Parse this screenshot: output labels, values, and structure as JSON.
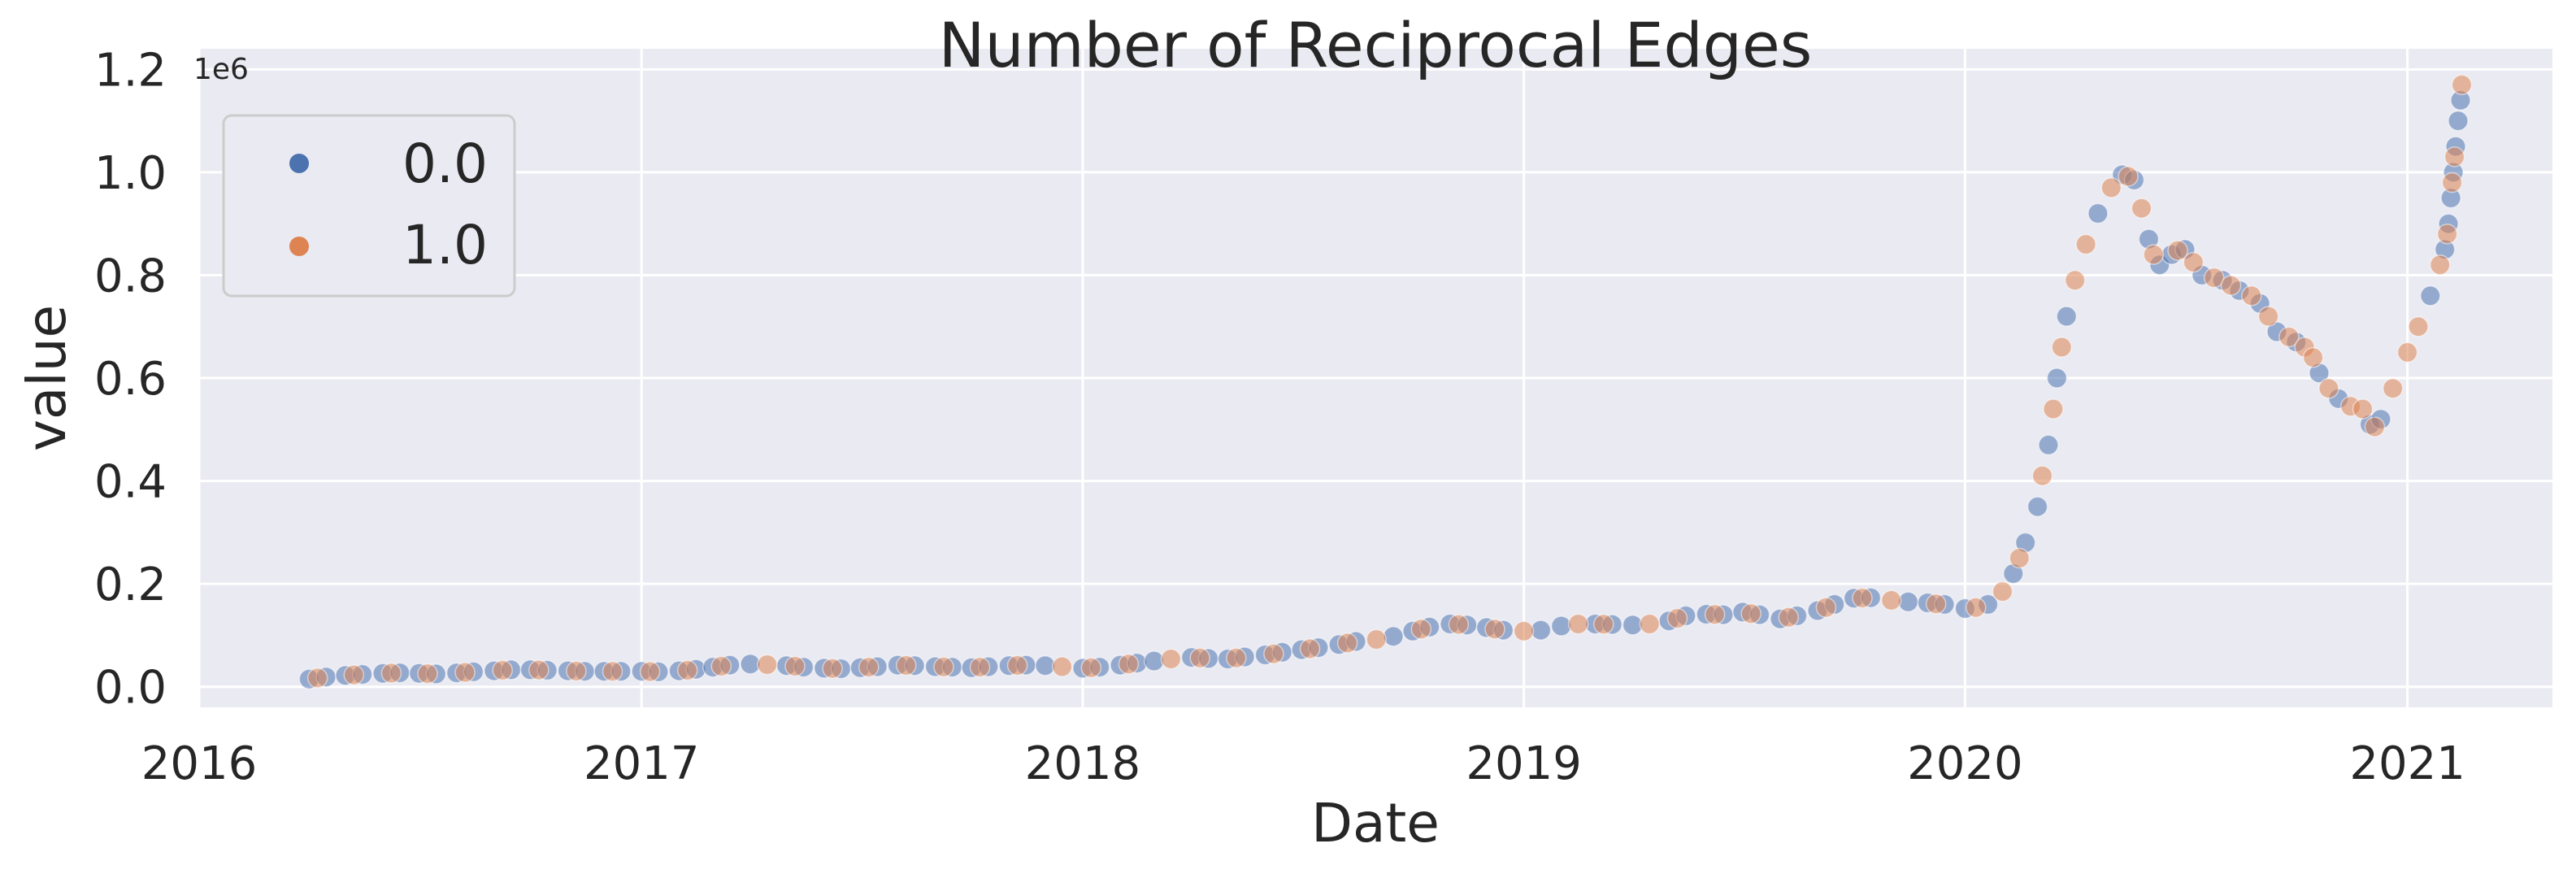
{
  "chart_data": {
    "type": "scatter",
    "title": "Number of Reciprocal Edges",
    "xlabel": "Date",
    "ylabel": "value",
    "y_offset_label": "1e6",
    "x_tick_labels": [
      "2016",
      "2017",
      "2018",
      "2019",
      "2020",
      "2021"
    ],
    "x_ticks": [
      "2016-01-01",
      "2017-01-01",
      "2018-01-01",
      "2019-01-01",
      "2020-01-01",
      "2021-01-01"
    ],
    "xlim": [
      "2016-01-01",
      "2021-05-01"
    ],
    "y_tick_labels": [
      "0.0",
      "0.2",
      "0.4",
      "0.6",
      "0.8",
      "1.0",
      "1.2"
    ],
    "y_ticks": [
      0,
      200000,
      400000,
      600000,
      800000,
      1000000,
      1200000
    ],
    "ylim": [
      -40000,
      1240000
    ],
    "grid": true,
    "legend_position": "top-left",
    "legend": [
      "0.0",
      "1.0"
    ],
    "colors": {
      "0.0": "#4c72b0",
      "1.0": "#dd8452",
      "background": "#eaeaf2",
      "grid": "#ffffff"
    },
    "series": [
      {
        "name": "0.0",
        "points": [
          [
            "2016-04-01",
            15000
          ],
          [
            "2016-04-15",
            19000
          ],
          [
            "2016-05-01",
            22000
          ],
          [
            "2016-05-15",
            24000
          ],
          [
            "2016-06-01",
            26000
          ],
          [
            "2016-06-15",
            27000
          ],
          [
            "2016-07-01",
            26000
          ],
          [
            "2016-07-15",
            25000
          ],
          [
            "2016-08-01",
            27000
          ],
          [
            "2016-08-15",
            29000
          ],
          [
            "2016-09-01",
            31000
          ],
          [
            "2016-09-15",
            33000
          ],
          [
            "2016-10-01",
            33000
          ],
          [
            "2016-10-15",
            32000
          ],
          [
            "2016-11-01",
            31000
          ],
          [
            "2016-11-15",
            30000
          ],
          [
            "2016-12-01",
            30000
          ],
          [
            "2016-12-15",
            30000
          ],
          [
            "2017-01-01",
            30000
          ],
          [
            "2017-01-15",
            29000
          ],
          [
            "2017-02-01",
            31000
          ],
          [
            "2017-02-15",
            34000
          ],
          [
            "2017-03-01",
            38000
          ],
          [
            "2017-03-15",
            42000
          ],
          [
            "2017-04-01",
            44000
          ],
          [
            "2017-05-01",
            41000
          ],
          [
            "2017-05-15",
            38000
          ],
          [
            "2017-06-01",
            36000
          ],
          [
            "2017-06-15",
            35000
          ],
          [
            "2017-07-01",
            37000
          ],
          [
            "2017-07-15",
            39000
          ],
          [
            "2017-08-01",
            42000
          ],
          [
            "2017-08-15",
            41000
          ],
          [
            "2017-09-01",
            39000
          ],
          [
            "2017-09-15",
            38000
          ],
          [
            "2017-10-01",
            37000
          ],
          [
            "2017-10-15",
            39000
          ],
          [
            "2017-11-01",
            41000
          ],
          [
            "2017-11-15",
            42000
          ],
          [
            "2017-12-01",
            41000
          ],
          [
            "2018-01-01",
            36000
          ],
          [
            "2018-01-15",
            38000
          ],
          [
            "2018-02-01",
            42000
          ],
          [
            "2018-02-15",
            46000
          ],
          [
            "2018-03-01",
            50000
          ],
          [
            "2018-04-01",
            57000
          ],
          [
            "2018-04-15",
            55000
          ],
          [
            "2018-05-01",
            54000
          ],
          [
            "2018-05-15",
            58000
          ],
          [
            "2018-06-01",
            62000
          ],
          [
            "2018-06-15",
            67000
          ],
          [
            "2018-07-01",
            72000
          ],
          [
            "2018-07-15",
            76000
          ],
          [
            "2018-08-01",
            82000
          ],
          [
            "2018-08-15",
            88000
          ],
          [
            "2018-09-15",
            98000
          ],
          [
            "2018-10-01",
            108000
          ],
          [
            "2018-10-15",
            116000
          ],
          [
            "2018-11-01",
            122000
          ],
          [
            "2018-11-15",
            120000
          ],
          [
            "2018-12-01",
            115000
          ],
          [
            "2018-12-15",
            110000
          ],
          [
            "2019-01-15",
            110000
          ],
          [
            "2019-02-01",
            118000
          ],
          [
            "2019-03-01",
            122000
          ],
          [
            "2019-03-15",
            121000
          ],
          [
            "2019-04-01",
            120000
          ],
          [
            "2019-05-01",
            128000
          ],
          [
            "2019-05-15",
            138000
          ],
          [
            "2019-06-01",
            141000
          ],
          [
            "2019-06-15",
            140000
          ],
          [
            "2019-07-01",
            145000
          ],
          [
            "2019-07-15",
            140000
          ],
          [
            "2019-08-01",
            132000
          ],
          [
            "2019-08-15",
            138000
          ],
          [
            "2019-09-01",
            148000
          ],
          [
            "2019-09-15",
            160000
          ],
          [
            "2019-10-01",
            172000
          ],
          [
            "2019-10-15",
            173000
          ],
          [
            "2019-11-15",
            165000
          ],
          [
            "2019-12-01",
            163000
          ],
          [
            "2019-12-15",
            160000
          ],
          [
            "2020-01-01",
            152000
          ],
          [
            "2020-01-20",
            160000
          ],
          [
            "2020-02-10",
            220000
          ],
          [
            "2020-02-20",
            280000
          ],
          [
            "2020-03-01",
            350000
          ],
          [
            "2020-03-10",
            470000
          ],
          [
            "2020-03-17",
            600000
          ],
          [
            "2020-03-25",
            720000
          ],
          [
            "2020-04-20",
            920000
          ],
          [
            "2020-05-10",
            995000
          ],
          [
            "2020-05-20",
            985000
          ],
          [
            "2020-06-01",
            870000
          ],
          [
            "2020-06-10",
            820000
          ],
          [
            "2020-06-20",
            840000
          ],
          [
            "2020-07-01",
            850000
          ],
          [
            "2020-07-15",
            800000
          ],
          [
            "2020-08-01",
            790000
          ],
          [
            "2020-08-15",
            770000
          ],
          [
            "2020-09-01",
            745000
          ],
          [
            "2020-09-15",
            690000
          ],
          [
            "2020-10-01",
            670000
          ],
          [
            "2020-10-20",
            610000
          ],
          [
            "2020-11-05",
            560000
          ],
          [
            "2020-12-01",
            510000
          ],
          [
            "2020-12-10",
            520000
          ],
          [
            "2021-01-20",
            760000
          ],
          [
            "2021-02-01",
            850000
          ],
          [
            "2021-02-04",
            900000
          ],
          [
            "2021-02-06",
            950000
          ],
          [
            "2021-02-08",
            1000000
          ],
          [
            "2021-02-10",
            1050000
          ],
          [
            "2021-02-12",
            1100000
          ],
          [
            "2021-02-14",
            1140000
          ]
        ]
      },
      {
        "name": "1.0",
        "points": [
          [
            "2016-04-08",
            17000
          ],
          [
            "2016-05-08",
            23000
          ],
          [
            "2016-06-08",
            26500
          ],
          [
            "2016-07-08",
            25500
          ],
          [
            "2016-08-08",
            28000
          ],
          [
            "2016-09-08",
            32000
          ],
          [
            "2016-10-08",
            32500
          ],
          [
            "2016-11-08",
            30500
          ],
          [
            "2016-12-08",
            30000
          ],
          [
            "2017-01-08",
            29500
          ],
          [
            "2017-02-08",
            32000
          ],
          [
            "2017-03-08",
            40000
          ],
          [
            "2017-04-15",
            43000
          ],
          [
            "2017-05-08",
            40000
          ],
          [
            "2017-06-08",
            35500
          ],
          [
            "2017-07-08",
            38000
          ],
          [
            "2017-08-08",
            41500
          ],
          [
            "2017-09-08",
            38500
          ],
          [
            "2017-10-08",
            38000
          ],
          [
            "2017-11-08",
            41500
          ],
          [
            "2017-12-15",
            39000
          ],
          [
            "2018-01-08",
            37000
          ],
          [
            "2018-02-08",
            44000
          ],
          [
            "2018-03-15",
            54000
          ],
          [
            "2018-04-08",
            56000
          ],
          [
            "2018-05-08",
            56000
          ],
          [
            "2018-06-08",
            64000
          ],
          [
            "2018-07-08",
            74000
          ],
          [
            "2018-08-08",
            85000
          ],
          [
            "2018-09-01",
            92000
          ],
          [
            "2018-10-08",
            112000
          ],
          [
            "2018-11-08",
            121000
          ],
          [
            "2018-12-08",
            112000
          ],
          [
            "2019-01-01",
            108000
          ],
          [
            "2019-02-15",
            122000
          ],
          [
            "2019-03-08",
            121500
          ],
          [
            "2019-04-15",
            122000
          ],
          [
            "2019-05-08",
            133000
          ],
          [
            "2019-06-08",
            140500
          ],
          [
            "2019-07-08",
            142000
          ],
          [
            "2019-08-08",
            135000
          ],
          [
            "2019-09-08",
            154000
          ],
          [
            "2019-10-08",
            172500
          ],
          [
            "2019-11-01",
            168000
          ],
          [
            "2019-12-08",
            161000
          ],
          [
            "2020-01-10",
            154000
          ],
          [
            "2020-02-01",
            185000
          ],
          [
            "2020-02-15",
            250000
          ],
          [
            "2020-03-05",
            410000
          ],
          [
            "2020-03-14",
            540000
          ],
          [
            "2020-03-21",
            660000
          ],
          [
            "2020-04-01",
            790000
          ],
          [
            "2020-04-10",
            860000
          ],
          [
            "2020-05-01",
            970000
          ],
          [
            "2020-05-15",
            992000
          ],
          [
            "2020-05-26",
            930000
          ],
          [
            "2020-06-05",
            840000
          ],
          [
            "2020-06-25",
            848000
          ],
          [
            "2020-07-08",
            825000
          ],
          [
            "2020-07-25",
            795000
          ],
          [
            "2020-08-08",
            780000
          ],
          [
            "2020-08-25",
            760000
          ],
          [
            "2020-09-08",
            720000
          ],
          [
            "2020-09-25",
            680000
          ],
          [
            "2020-10-08",
            660000
          ],
          [
            "2020-10-15",
            640000
          ],
          [
            "2020-10-28",
            580000
          ],
          [
            "2020-11-15",
            545000
          ],
          [
            "2020-11-25",
            540000
          ],
          [
            "2020-12-05",
            505000
          ],
          [
            "2020-12-20",
            580000
          ],
          [
            "2021-01-01",
            650000
          ],
          [
            "2021-01-10",
            700000
          ],
          [
            "2021-01-28",
            820000
          ],
          [
            "2021-02-03",
            880000
          ],
          [
            "2021-02-07",
            980000
          ],
          [
            "2021-02-09",
            1030000
          ],
          [
            "2021-02-15",
            1170000
          ]
        ]
      }
    ]
  }
}
